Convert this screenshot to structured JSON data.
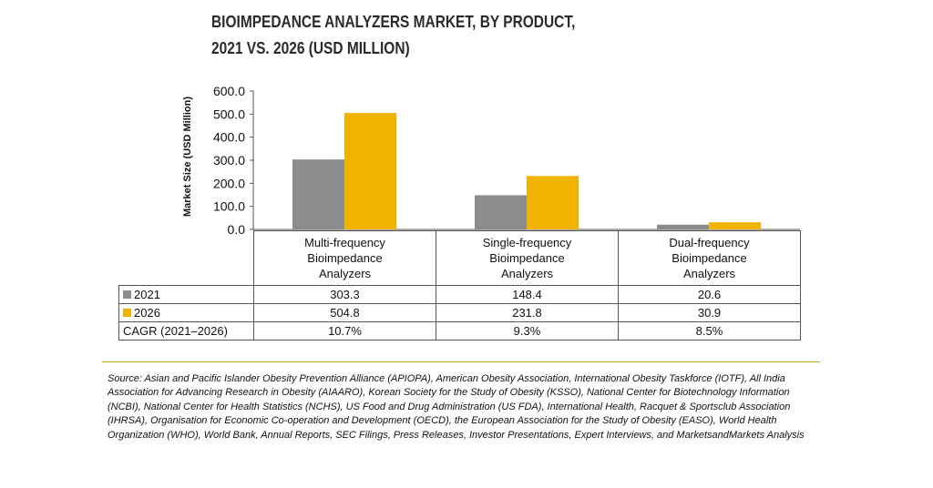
{
  "title_lines": [
    "BIOIMPEDANCE ANALYZERS MARKET, BY PRODUCT,",
    "2021 VS. 2026 (USD MILLION)"
  ],
  "chart_data": {
    "type": "bar",
    "title": "BIOIMPEDANCE ANALYZERS MARKET, BY PRODUCT, 2021 VS. 2026 (USD MILLION)",
    "ylabel": "Market Size (USD Million)",
    "xlabel": "",
    "ylim": [
      0,
      600
    ],
    "yticks": [
      "0.0",
      "100.0",
      "200.0",
      "300.0",
      "400.0",
      "500.0",
      "600.0"
    ],
    "grid": false,
    "categories": [
      [
        "Multi-frequency",
        "Bioimpedance",
        "Analyzers"
      ],
      [
        "Single-frequency",
        "Bioimpedance",
        "Analyzers"
      ],
      [
        "Dual-frequency",
        "Bioimpedance",
        "Analyzers"
      ]
    ],
    "series": [
      {
        "name": "2021",
        "color": "#8c8c8c",
        "values": [
          303.3,
          148.4,
          20.6
        ],
        "labels": [
          "303.3",
          "148.4",
          "20.6"
        ]
      },
      {
        "name": "2026",
        "color": "#f0b400",
        "values": [
          504.8,
          231.8,
          30.9
        ],
        "labels": [
          "504.8",
          "231.8",
          "30.9"
        ]
      }
    ],
    "cagr": {
      "label": "CAGR (2021–2026)",
      "values": [
        "10.7%",
        "9.3%",
        "8.5%"
      ]
    }
  },
  "source": "Source: Asian and Pacific Islander Obesity Prevention Alliance (APIOPA), American Obesity Association, International Obesity Taskforce (IOTF), All India Association for Advancing Research in Obesity (AIAARO), Korean Society for the Study of Obesity (KSSO), National Center for Biotechnology Information (NCBI), National Center for Health Statistics (NCHS), US Food and Drug Administration (US FDA), International Health, Racquet & Sportsclub Association (IHRSA), Organisation for Economic Co-operation and Development (OECD), the European Association for the Study of Obesity (EASO), World Health Organization (WHO), World Bank, Annual Reports, SEC Filings, Press Releases, Investor Presentations, Expert Interviews, and MarketsandMarkets Analysis"
}
